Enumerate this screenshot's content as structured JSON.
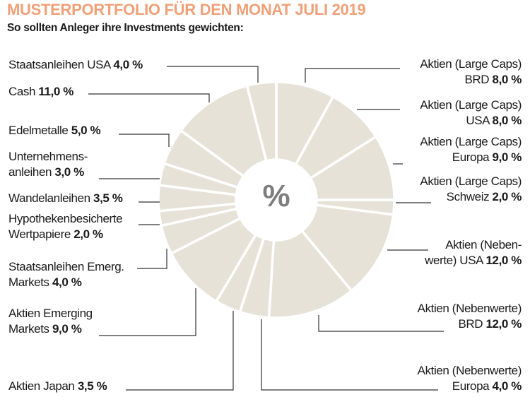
{
  "title": "MUSTERPORTFOLIO FÜR DEN MONAT JULI 2019",
  "subtitle": "So sollten Anleger ihre Investments gewichten:",
  "center_label": "%",
  "colors": {
    "slice": "#e6e2d8",
    "title": "#f0a078",
    "separator": "#ffffff",
    "center": "#7d7d7d"
  },
  "chart_data": {
    "type": "pie",
    "donut": true,
    "title": "MUSTERPORTFOLIO FÜR DEN MONAT JULI 2019",
    "unit": "%",
    "slices": [
      {
        "l1": "Aktien (Large Caps)",
        "l2": "BRD",
        "value_label": "8,0 %",
        "value": 8.0
      },
      {
        "l1": "Aktien (Large Caps)",
        "l2": "USA",
        "value_label": "8,0 %",
        "value": 8.0
      },
      {
        "l1": "Aktien (Large Caps)",
        "l2": "Europa",
        "value_label": "9,0  %",
        "value": 9.0
      },
      {
        "l1": "Aktien (Large Caps)",
        "l2": "Schweiz",
        "value_label": "2,0 %",
        "value": 2.0
      },
      {
        "l1": "Aktien (Neben-",
        "l2": "werte) USA",
        "value_label": "12,0 %",
        "value": 12.0
      },
      {
        "l1": "Aktien (Nebenwerte)",
        "l2": "BRD",
        "value_label": "12,0 %",
        "value": 12.0
      },
      {
        "l1": "Aktien (Nebenwerte)",
        "l2": "Europa",
        "value_label": "4,0 %",
        "value": 4.0
      },
      {
        "l1": "",
        "l2": "Aktien Japan",
        "value_label": "3,5 %",
        "value": 3.5
      },
      {
        "l1": "Aktien Emerging",
        "l2": "Markets",
        "value_label": "9,0 %",
        "value": 9.0
      },
      {
        "l1": "Staatsanleihen Emerg.",
        "l2": "Markets",
        "value_label": "4,0 %",
        "value": 4.0
      },
      {
        "l1": "Hypothekenbesicherte",
        "l2": "Wertpapiere",
        "value_label": "2,0 %",
        "value": 2.0
      },
      {
        "l1": "",
        "l2": "Wandelanleihen",
        "value_label": "3,5 %",
        "value": 3.5
      },
      {
        "l1": "Unternehmens-",
        "l2": "anleihen",
        "value_label": "3,0 %",
        "value": 3.0
      },
      {
        "l1": "",
        "l2": "Edelmetalle",
        "value_label": "5,0 %",
        "value": 5.0
      },
      {
        "l1": "",
        "l2": "Cash",
        "value_label": "11,0 %",
        "value": 11.0
      },
      {
        "l1": "",
        "l2": "Staatsanleihen USA",
        "value_label": "4,0 %",
        "value": 4.0
      }
    ]
  }
}
